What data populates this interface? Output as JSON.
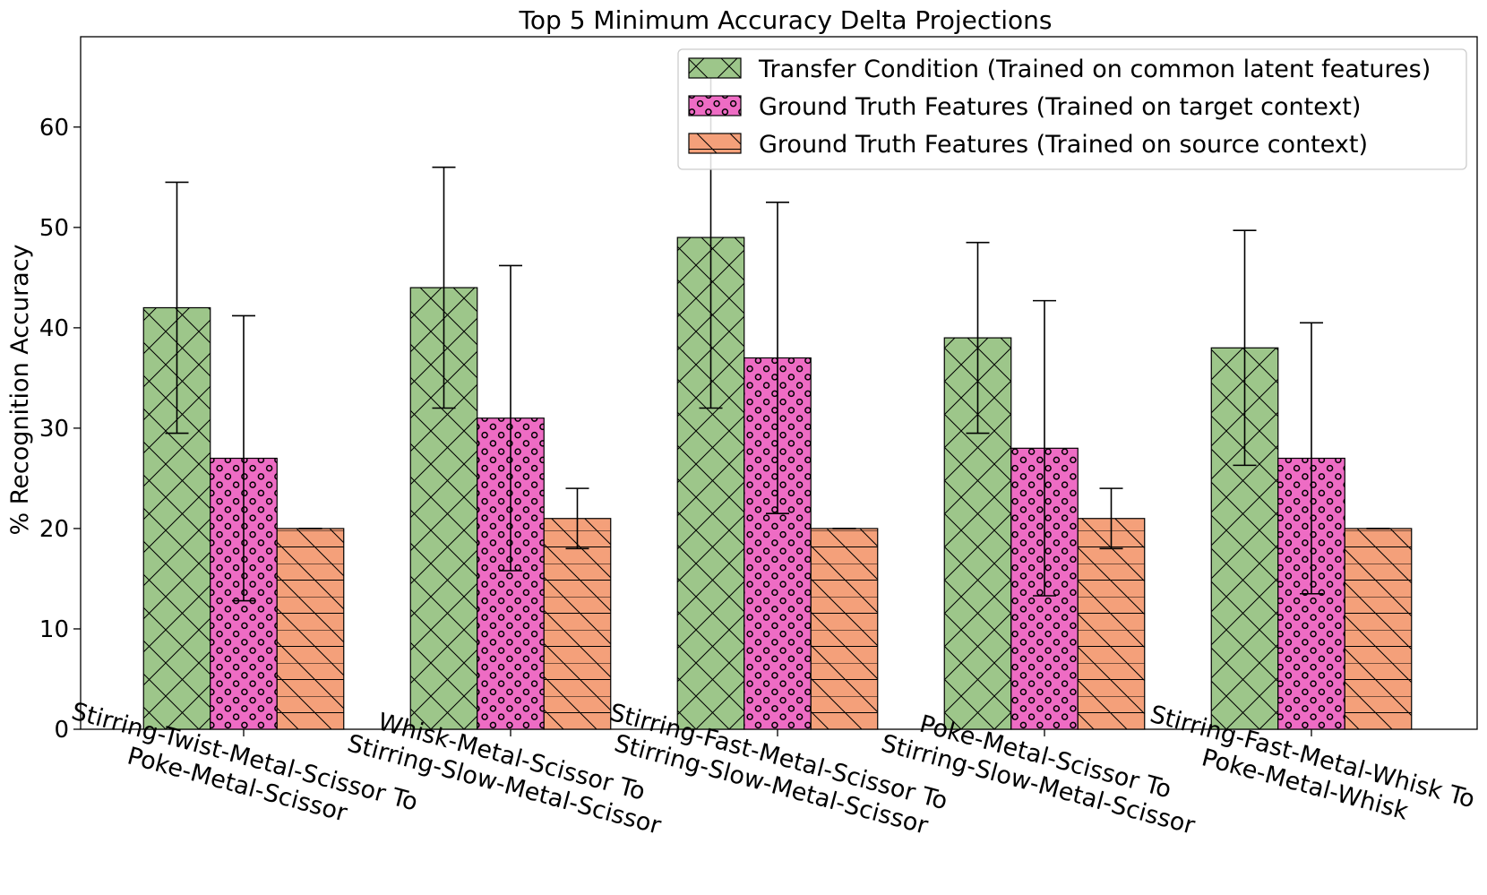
{
  "chart_data": {
    "type": "bar",
    "title": "Top 5 Minimum Accuracy Delta Projections",
    "xlabel": "",
    "ylabel": "% Recognition Accuracy",
    "ylim": [
      0,
      69
    ],
    "yticks": [
      0,
      10,
      20,
      30,
      40,
      50,
      60
    ],
    "grid": false,
    "legend_position": "top-right",
    "categories": [
      [
        "Stirring-Twist-Metal-Scissor To",
        "Poke-Metal-Scissor"
      ],
      [
        "Whisk-Metal-Scissor To",
        "Stirring-Slow-Metal-Scissor"
      ],
      [
        "Stirring-Fast-Metal-Scissor To",
        "Stirring-Slow-Metal-Scissor"
      ],
      [
        "Poke-Metal-Scissor To",
        "Stirring-Slow-Metal-Scissor"
      ],
      [
        "Stirring-Fast-Metal-Whisk To",
        "Poke-Metal-Whisk"
      ]
    ],
    "series": [
      {
        "name": "Transfer Condition (Trained on common latent features)",
        "color": "#9dc68a",
        "hatch": "crosshatch",
        "values": [
          42,
          44,
          49,
          39,
          38
        ],
        "error": [
          12.5,
          12,
          17,
          9.5,
          11.7
        ]
      },
      {
        "name": "Ground Truth Features (Trained on target context)",
        "color": "#ee6cc4",
        "hatch": "circles",
        "values": [
          27,
          31,
          37,
          28,
          27
        ],
        "error": [
          14.2,
          15.2,
          15.5,
          14.7,
          13.5
        ]
      },
      {
        "name": "Ground Truth Features (Trained on source context)",
        "color": "#f4a07a",
        "hatch": "diag-horizontal",
        "values": [
          20,
          21,
          20,
          21,
          20
        ],
        "error": [
          0,
          3,
          0,
          3,
          0
        ]
      }
    ]
  }
}
